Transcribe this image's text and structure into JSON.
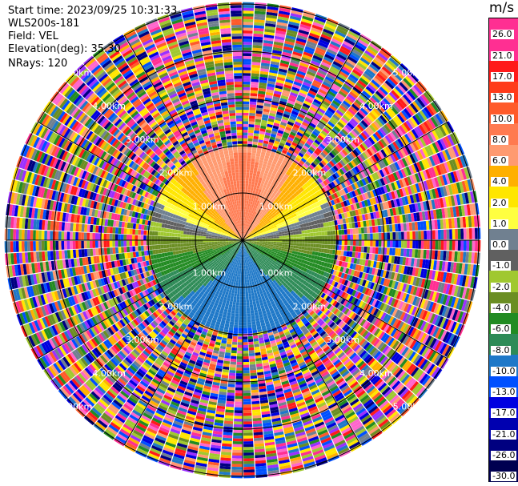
{
  "header": {
    "start_time": "Start time: 2023/09/25 10:31:33",
    "site": "WLS200s-181",
    "field": "Field: VEL",
    "elevation": "Elevation(deg): 35.30",
    "nrays": "NRays: 120"
  },
  "colorbar": {
    "unit": "m/s",
    "ticks": [
      "26.0",
      "21.0",
      "17.0",
      "13.0",
      "10.0",
      "8.0",
      "6.0",
      "4.0",
      "2.0",
      "1.0",
      "0.0",
      "-1.0",
      "-2.0",
      "-4.0",
      "-6.0",
      "-8.0",
      "-10.0",
      "-13.0",
      "-17.0",
      "-21.0",
      "-26.0",
      "-30.0"
    ],
    "colors": [
      "#ff2f92",
      "#ff2f92",
      "#ff1a1a",
      "#ff3b1a",
      "#ff5a2a",
      "#ff7a50",
      "#ff9a70",
      "#ffb000",
      "#ffe600",
      "#ffff40",
      "#708090",
      "#606060",
      "#a0c830",
      "#6b8e23",
      "#228b22",
      "#2e8b57",
      "#1e78c8",
      "#0050ff",
      "#0000e0",
      "#0000b0",
      "#000080",
      "#000050"
    ]
  },
  "chart_data": {
    "type": "heatmap",
    "subtype": "ppi-polar",
    "field": "VEL",
    "unit": "m/s",
    "nrays": 120,
    "range_rings_km": [
      1.0,
      2.0,
      3.0,
      4.0,
      5.0
    ],
    "ring_labels": [
      "1.00km",
      "2.00km",
      "3.00km",
      "4.00km",
      "5.00km"
    ],
    "valid_range_km": 2.0,
    "max_range_km": 5.0,
    "value_min": -30.0,
    "value_max": 26.0,
    "velocity_pattern": "positive north (red/orange), near-zero east-west (yellow/gray/green), negative south (blue)"
  }
}
